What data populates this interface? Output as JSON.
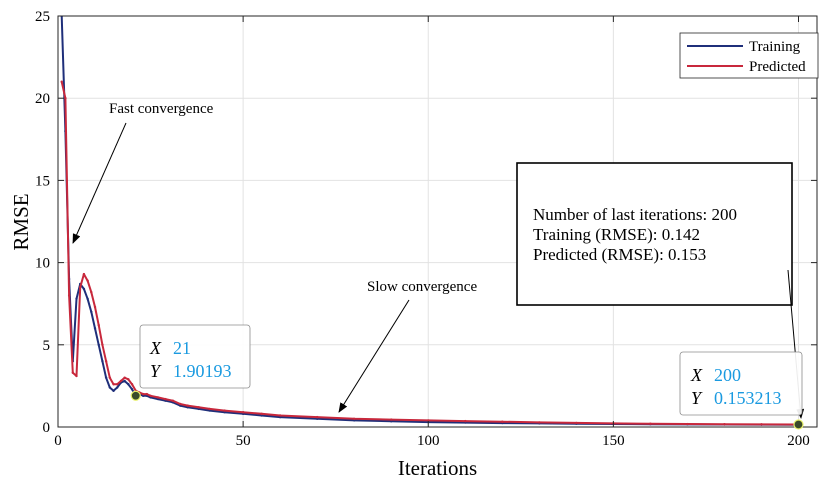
{
  "chart_data": {
    "type": "line",
    "xlabel": "Iterations",
    "ylabel": "RMSE",
    "xlim": [
      0,
      205
    ],
    "ylim": [
      0,
      25
    ],
    "xticks": [
      0,
      50,
      100,
      150,
      200
    ],
    "yticks": [
      0,
      5,
      10,
      15,
      20,
      25
    ],
    "grid": true,
    "legend_position": "top-right",
    "series": [
      {
        "name": "Training",
        "color": "#1f2f7a",
        "points": [
          [
            1,
            25.0
          ],
          [
            2,
            18.0
          ],
          [
            3,
            9.0
          ],
          [
            4,
            4.0
          ],
          [
            5,
            7.8
          ],
          [
            6,
            8.7
          ],
          [
            7,
            8.4
          ],
          [
            8,
            7.8
          ],
          [
            9,
            7.0
          ],
          [
            10,
            6.0
          ],
          [
            11,
            5.0
          ],
          [
            12,
            4.0
          ],
          [
            13,
            3.0
          ],
          [
            14,
            2.4
          ],
          [
            15,
            2.2
          ],
          [
            16,
            2.4
          ],
          [
            17,
            2.7
          ],
          [
            18,
            2.8
          ],
          [
            19,
            2.6
          ],
          [
            20,
            2.3
          ],
          [
            21,
            1.90193
          ],
          [
            22,
            2.0
          ],
          [
            23,
            1.9
          ],
          [
            24,
            1.9
          ],
          [
            25,
            1.8
          ],
          [
            27,
            1.7
          ],
          [
            29,
            1.6
          ],
          [
            31,
            1.5
          ],
          [
            33,
            1.3
          ],
          [
            35,
            1.2
          ],
          [
            38,
            1.1
          ],
          [
            41,
            1.0
          ],
          [
            45,
            0.9
          ],
          [
            50,
            0.8
          ],
          [
            55,
            0.7
          ],
          [
            60,
            0.6
          ],
          [
            70,
            0.5
          ],
          [
            80,
            0.4
          ],
          [
            90,
            0.35
          ],
          [
            100,
            0.3
          ],
          [
            110,
            0.27
          ],
          [
            120,
            0.24
          ],
          [
            130,
            0.22
          ],
          [
            140,
            0.2
          ],
          [
            150,
            0.18
          ],
          [
            160,
            0.17
          ],
          [
            170,
            0.16
          ],
          [
            180,
            0.15
          ],
          [
            190,
            0.145
          ],
          [
            200,
            0.142
          ]
        ]
      },
      {
        "name": "Predicted",
        "color": "#c8283c",
        "points": [
          [
            1,
            21.0
          ],
          [
            2,
            20.0
          ],
          [
            3,
            8.0
          ],
          [
            4,
            3.3
          ],
          [
            5,
            3.1
          ],
          [
            6,
            8.5
          ],
          [
            7,
            9.3
          ],
          [
            8,
            8.9
          ],
          [
            9,
            8.2
          ],
          [
            10,
            7.3
          ],
          [
            11,
            6.2
          ],
          [
            12,
            5.0
          ],
          [
            13,
            4.0
          ],
          [
            14,
            3.0
          ],
          [
            15,
            2.6
          ],
          [
            16,
            2.6
          ],
          [
            17,
            2.8
          ],
          [
            18,
            3.0
          ],
          [
            19,
            2.9
          ],
          [
            20,
            2.6
          ],
          [
            21,
            2.2
          ],
          [
            22,
            2.1
          ],
          [
            23,
            2.0
          ],
          [
            24,
            2.0
          ],
          [
            25,
            1.9
          ],
          [
            27,
            1.8
          ],
          [
            29,
            1.7
          ],
          [
            31,
            1.6
          ],
          [
            33,
            1.4
          ],
          [
            35,
            1.3
          ],
          [
            38,
            1.2
          ],
          [
            41,
            1.1
          ],
          [
            45,
            1.0
          ],
          [
            50,
            0.9
          ],
          [
            55,
            0.8
          ],
          [
            60,
            0.7
          ],
          [
            70,
            0.6
          ],
          [
            80,
            0.5
          ],
          [
            90,
            0.45
          ],
          [
            100,
            0.4
          ],
          [
            110,
            0.36
          ],
          [
            120,
            0.32
          ],
          [
            130,
            0.28
          ],
          [
            140,
            0.25
          ],
          [
            150,
            0.22
          ],
          [
            160,
            0.2
          ],
          [
            170,
            0.18
          ],
          [
            180,
            0.17
          ],
          [
            190,
            0.16
          ],
          [
            200,
            0.153213
          ]
        ]
      }
    ],
    "datatips": [
      {
        "x_label": "X",
        "x_value": "21",
        "y_label": "Y",
        "y_value": "1.90193",
        "x": 21,
        "y": 1.90193
      },
      {
        "x_label": "X",
        "x_value": "200",
        "y_label": "Y",
        "y_value": "0.153213",
        "x": 200,
        "y": 0.153213
      }
    ],
    "annotations": [
      {
        "text": "Fast convergence"
      },
      {
        "text": "Slow convergence"
      }
    ],
    "info_box": [
      "Number of last iterations: 200",
      "Training (RMSE): 0.142",
      "Predicted (RMSE): 0.153"
    ]
  }
}
